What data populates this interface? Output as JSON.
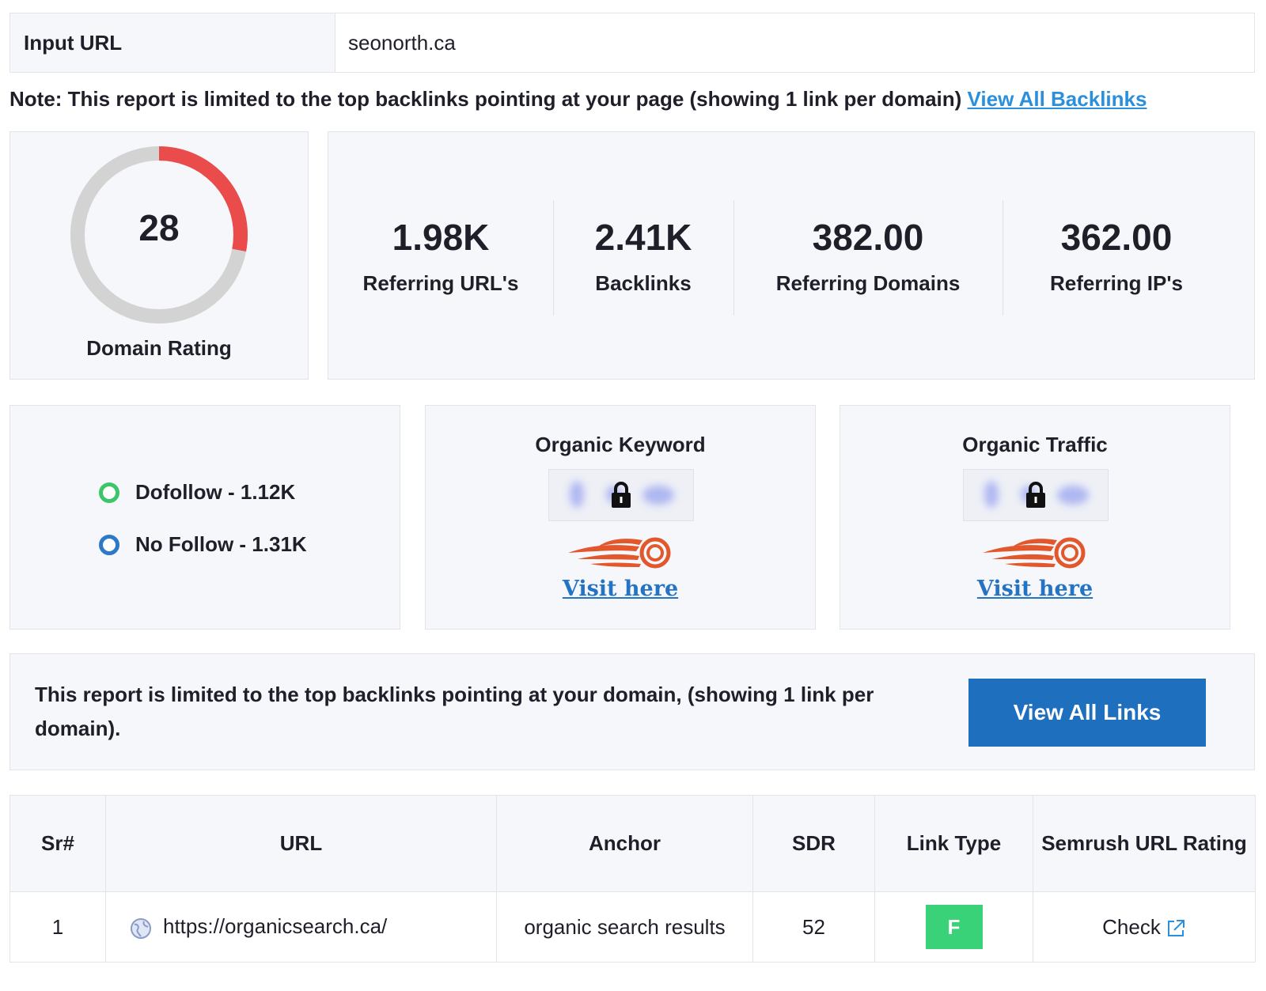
{
  "input": {
    "label": "Input URL",
    "value": "seonorth.ca"
  },
  "note": {
    "text": "Note: This report is limited to the top backlinks pointing at your page (showing 1 link per domain)",
    "link": "View All Backlinks"
  },
  "domain_rating": {
    "value": "28",
    "label": "Domain Rating",
    "score": 28,
    "max": 100,
    "arc_color": "#ea4b4b",
    "track_color": "#d3d3d3"
  },
  "stats": [
    {
      "value": "1.98K",
      "label": "Referring URL's"
    },
    {
      "value": "2.41K",
      "label": "Backlinks"
    },
    {
      "value": "382.00",
      "label": "Referring Domains"
    },
    {
      "value": "362.00",
      "label": "Referring IP's"
    }
  ],
  "follow": {
    "dofollow": {
      "text": "Dofollow - 1.12K",
      "color": "#3cc569"
    },
    "nofollow": {
      "text": "No Follow - 1.31K",
      "color": "#2e79c6"
    }
  },
  "organic_keyword": {
    "title": "Organic Keyword",
    "link": "Visit here",
    "icon": "lock-icon",
    "logo": "semrush-logo"
  },
  "organic_traffic": {
    "title": "Organic Traffic",
    "link": "Visit here",
    "icon": "lock-icon",
    "logo": "semrush-logo"
  },
  "limit": {
    "text": "This report is limited to the top backlinks pointing at your domain, (showing 1 link per domain).",
    "button": "View All Links"
  },
  "table": {
    "headers": [
      "Sr#",
      "URL",
      "Anchor",
      "SDR",
      "Link Type",
      "Semrush URL Rating"
    ],
    "rows": [
      {
        "sr": "1",
        "url": "https://organicsearch.ca/",
        "anchor": "organic search results",
        "sdr": "52",
        "link_type": "F",
        "rating": "Check"
      }
    ]
  },
  "colors": {
    "accent_button": "#1f6fbf",
    "link": "#2b8fdb",
    "badge_follow": "#3ad279",
    "semrush": "#e2572b"
  }
}
